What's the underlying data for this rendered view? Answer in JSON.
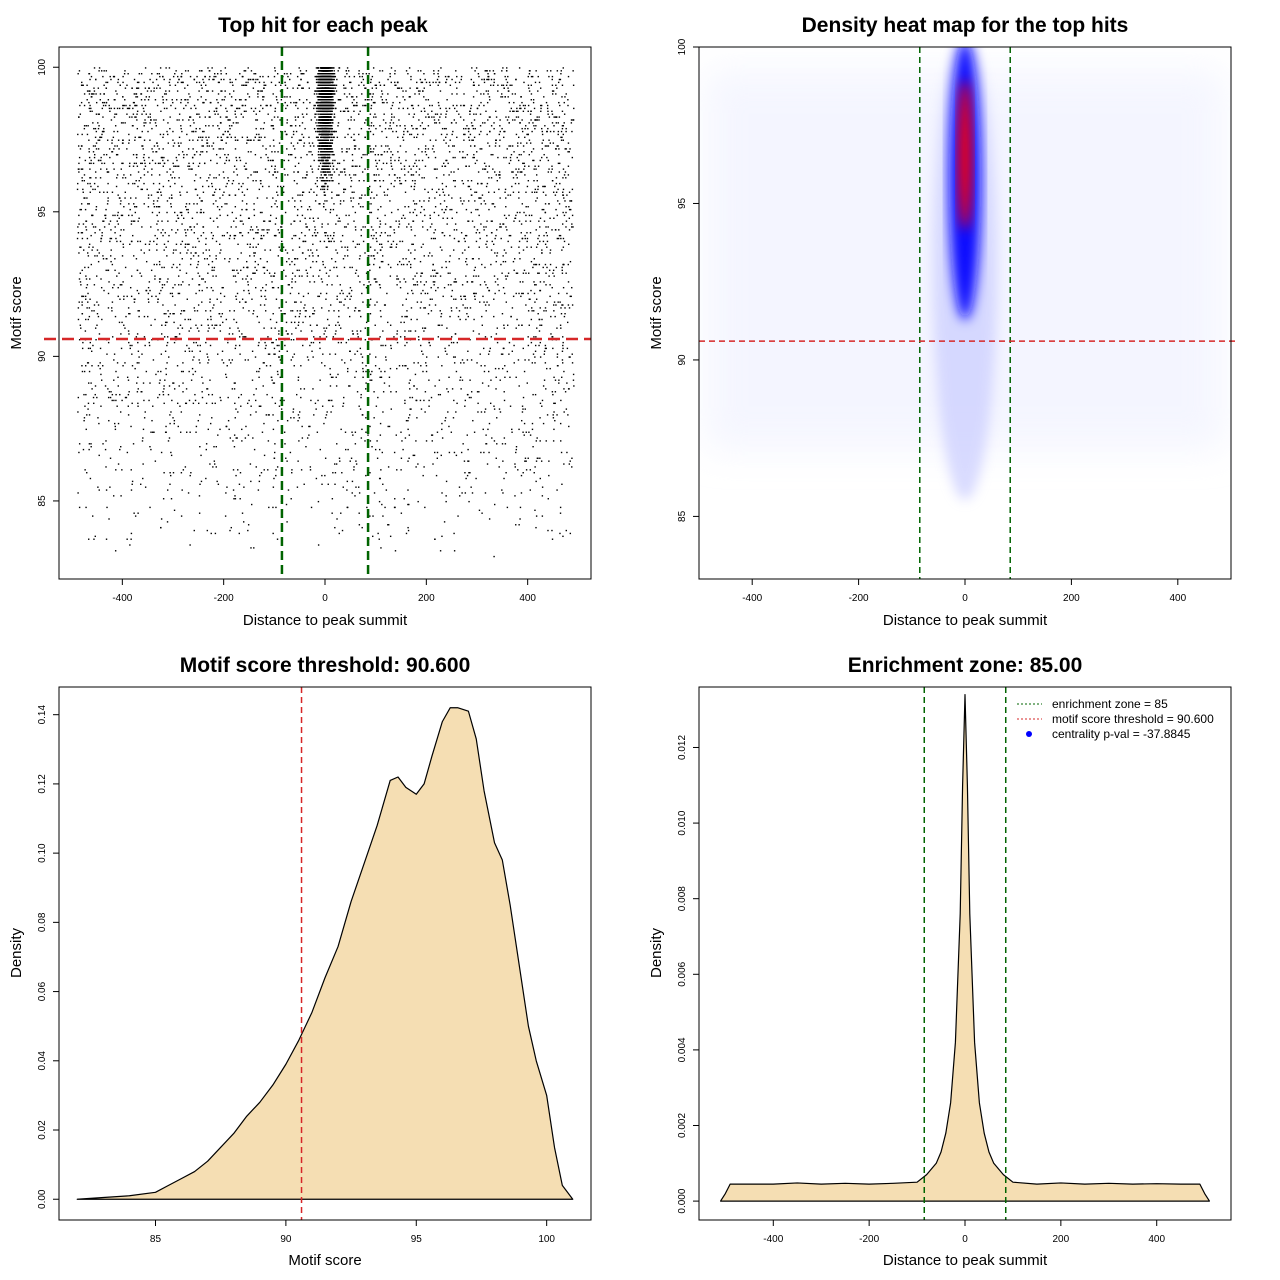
{
  "figure": {
    "colors": {
      "frame": "#000000",
      "enrichment_line": "#006400",
      "threshold_line": "#d62728",
      "density_fill": "#f5deb3",
      "heat_low": "#ffffff",
      "heat_mid": "#0000ff",
      "heat_high": "#ff0000",
      "legend_point": "#0000ff"
    }
  },
  "chart_data": [
    {
      "id": "scatter",
      "type": "scatter",
      "title": "Top hit for each peak",
      "xlabel": "Distance to peak summit",
      "ylabel": "Motif score",
      "xlim": [
        -525,
        525
      ],
      "ylim": [
        82.3,
        100.7
      ],
      "xticks": [
        -400,
        -200,
        0,
        200,
        400
      ],
      "xtick_labels": [
        "-400",
        "-200",
        "0",
        "200",
        "400"
      ],
      "yticks": [
        85,
        90,
        95,
        100
      ],
      "ytick_labels": [
        "85",
        "90",
        "95",
        "100"
      ],
      "vlines": [
        -85,
        85
      ],
      "hline": 90.6,
      "points_description_x_range": [
        -490,
        490
      ],
      "points_description_y_range": [
        83,
        100
      ],
      "grid": false
    },
    {
      "id": "heatmap",
      "type": "heatmap",
      "title": "Density heat map for the top hits",
      "xlabel": "Distance to peak summit",
      "ylabel": "Motif score",
      "xlim": [
        -500,
        500
      ],
      "ylim": [
        83,
        100
      ],
      "xticks": [
        -400,
        -200,
        0,
        200,
        400
      ],
      "xtick_labels": [
        "-400",
        "-200",
        "0",
        "200",
        "400"
      ],
      "yticks": [
        85,
        90,
        95,
        100
      ],
      "ytick_labels": [
        "85",
        "90",
        "95",
        "100"
      ],
      "vlines": [
        -85,
        85
      ],
      "hline": 90.6,
      "peak_center": {
        "x": 0,
        "y": 97
      },
      "grid": false
    },
    {
      "id": "score-density",
      "type": "area",
      "title": "Motif score threshold: 90.600",
      "xlabel": "Motif score",
      "ylabel": "Density",
      "xlim": [
        81.3,
        101.7
      ],
      "ylim": [
        -0.006,
        0.148
      ],
      "xticks": [
        85,
        90,
        95,
        100
      ],
      "xtick_labels": [
        "85",
        "90",
        "95",
        "100"
      ],
      "yticks": [
        0,
        0.02,
        0.04,
        0.06,
        0.08,
        0.1,
        0.12,
        0.14
      ],
      "ytick_labels": [
        "0.00",
        "0.02",
        "0.04",
        "0.06",
        "0.08",
        "0.10",
        "0.12",
        "0.14"
      ],
      "vline": 90.6,
      "x": [
        82,
        83,
        84,
        85,
        85.5,
        86,
        86.5,
        87,
        87.5,
        88,
        88.5,
        89,
        89.5,
        90,
        90.5,
        91,
        91.5,
        92,
        92.5,
        93,
        93.5,
        94,
        94.3,
        94.6,
        95,
        95.3,
        95.6,
        96,
        96.3,
        96.6,
        97,
        97.3,
        97.6,
        98,
        98.3,
        98.6,
        99,
        99.3,
        99.6,
        100,
        100.3,
        100.6,
        101
      ],
      "y": [
        0,
        0.0005,
        0.001,
        0.002,
        0.004,
        0.006,
        0.008,
        0.011,
        0.015,
        0.019,
        0.024,
        0.028,
        0.033,
        0.039,
        0.046,
        0.054,
        0.064,
        0.073,
        0.086,
        0.097,
        0.108,
        0.121,
        0.122,
        0.119,
        0.117,
        0.12,
        0.128,
        0.138,
        0.142,
        0.142,
        0.141,
        0.133,
        0.118,
        0.103,
        0.098,
        0.085,
        0.065,
        0.05,
        0.04,
        0.03,
        0.015,
        0.004,
        0
      ]
    },
    {
      "id": "distance-density",
      "type": "area",
      "title": "Enrichment zone: 85.00",
      "xlabel": "Distance to peak summit",
      "ylabel": "Density",
      "xlim": [
        -555,
        555
      ],
      "ylim": [
        -0.0005,
        0.0136
      ],
      "xticks": [
        -400,
        -200,
        0,
        200,
        400
      ],
      "xtick_labels": [
        "-400",
        "-200",
        "0",
        "200",
        "400"
      ],
      "yticks": [
        0,
        0.002,
        0.004,
        0.006,
        0.008,
        0.01,
        0.012
      ],
      "ytick_labels": [
        "0.000",
        "0.002",
        "0.004",
        "0.006",
        "0.008",
        "0.010",
        "0.012"
      ],
      "vlines": [
        -85,
        85
      ],
      "x": [
        -510,
        -500,
        -490,
        -450,
        -400,
        -350,
        -300,
        -250,
        -200,
        -150,
        -100,
        -80,
        -60,
        -50,
        -40,
        -30,
        -20,
        -10,
        -5,
        0,
        5,
        10,
        20,
        30,
        40,
        50,
        60,
        80,
        100,
        150,
        200,
        250,
        300,
        350,
        400,
        450,
        490,
        500,
        510
      ],
      "y": [
        0,
        0.0002,
        0.00045,
        0.00045,
        0.00045,
        0.00048,
        0.00045,
        0.00047,
        0.00045,
        0.00047,
        0.0005,
        0.0007,
        0.001,
        0.0013,
        0.0018,
        0.0026,
        0.0042,
        0.0076,
        0.011,
        0.0134,
        0.011,
        0.0076,
        0.0042,
        0.0026,
        0.0018,
        0.0013,
        0.001,
        0.0007,
        0.0005,
        0.00045,
        0.00048,
        0.00045,
        0.00047,
        0.00045,
        0.00046,
        0.00045,
        0.00045,
        0.0002,
        0
      ],
      "legend": {
        "placement": "top-right",
        "entries": [
          {
            "label": "enrichment zone = 85",
            "style": "dotted-line",
            "color": "#006400"
          },
          {
            "label": "motif score threshold = 90.600",
            "style": "dotted-line",
            "color": "#d62728"
          },
          {
            "label": "centrality p-val = -37.8845",
            "style": "point",
            "color": "#0000ff"
          }
        ]
      }
    }
  ]
}
